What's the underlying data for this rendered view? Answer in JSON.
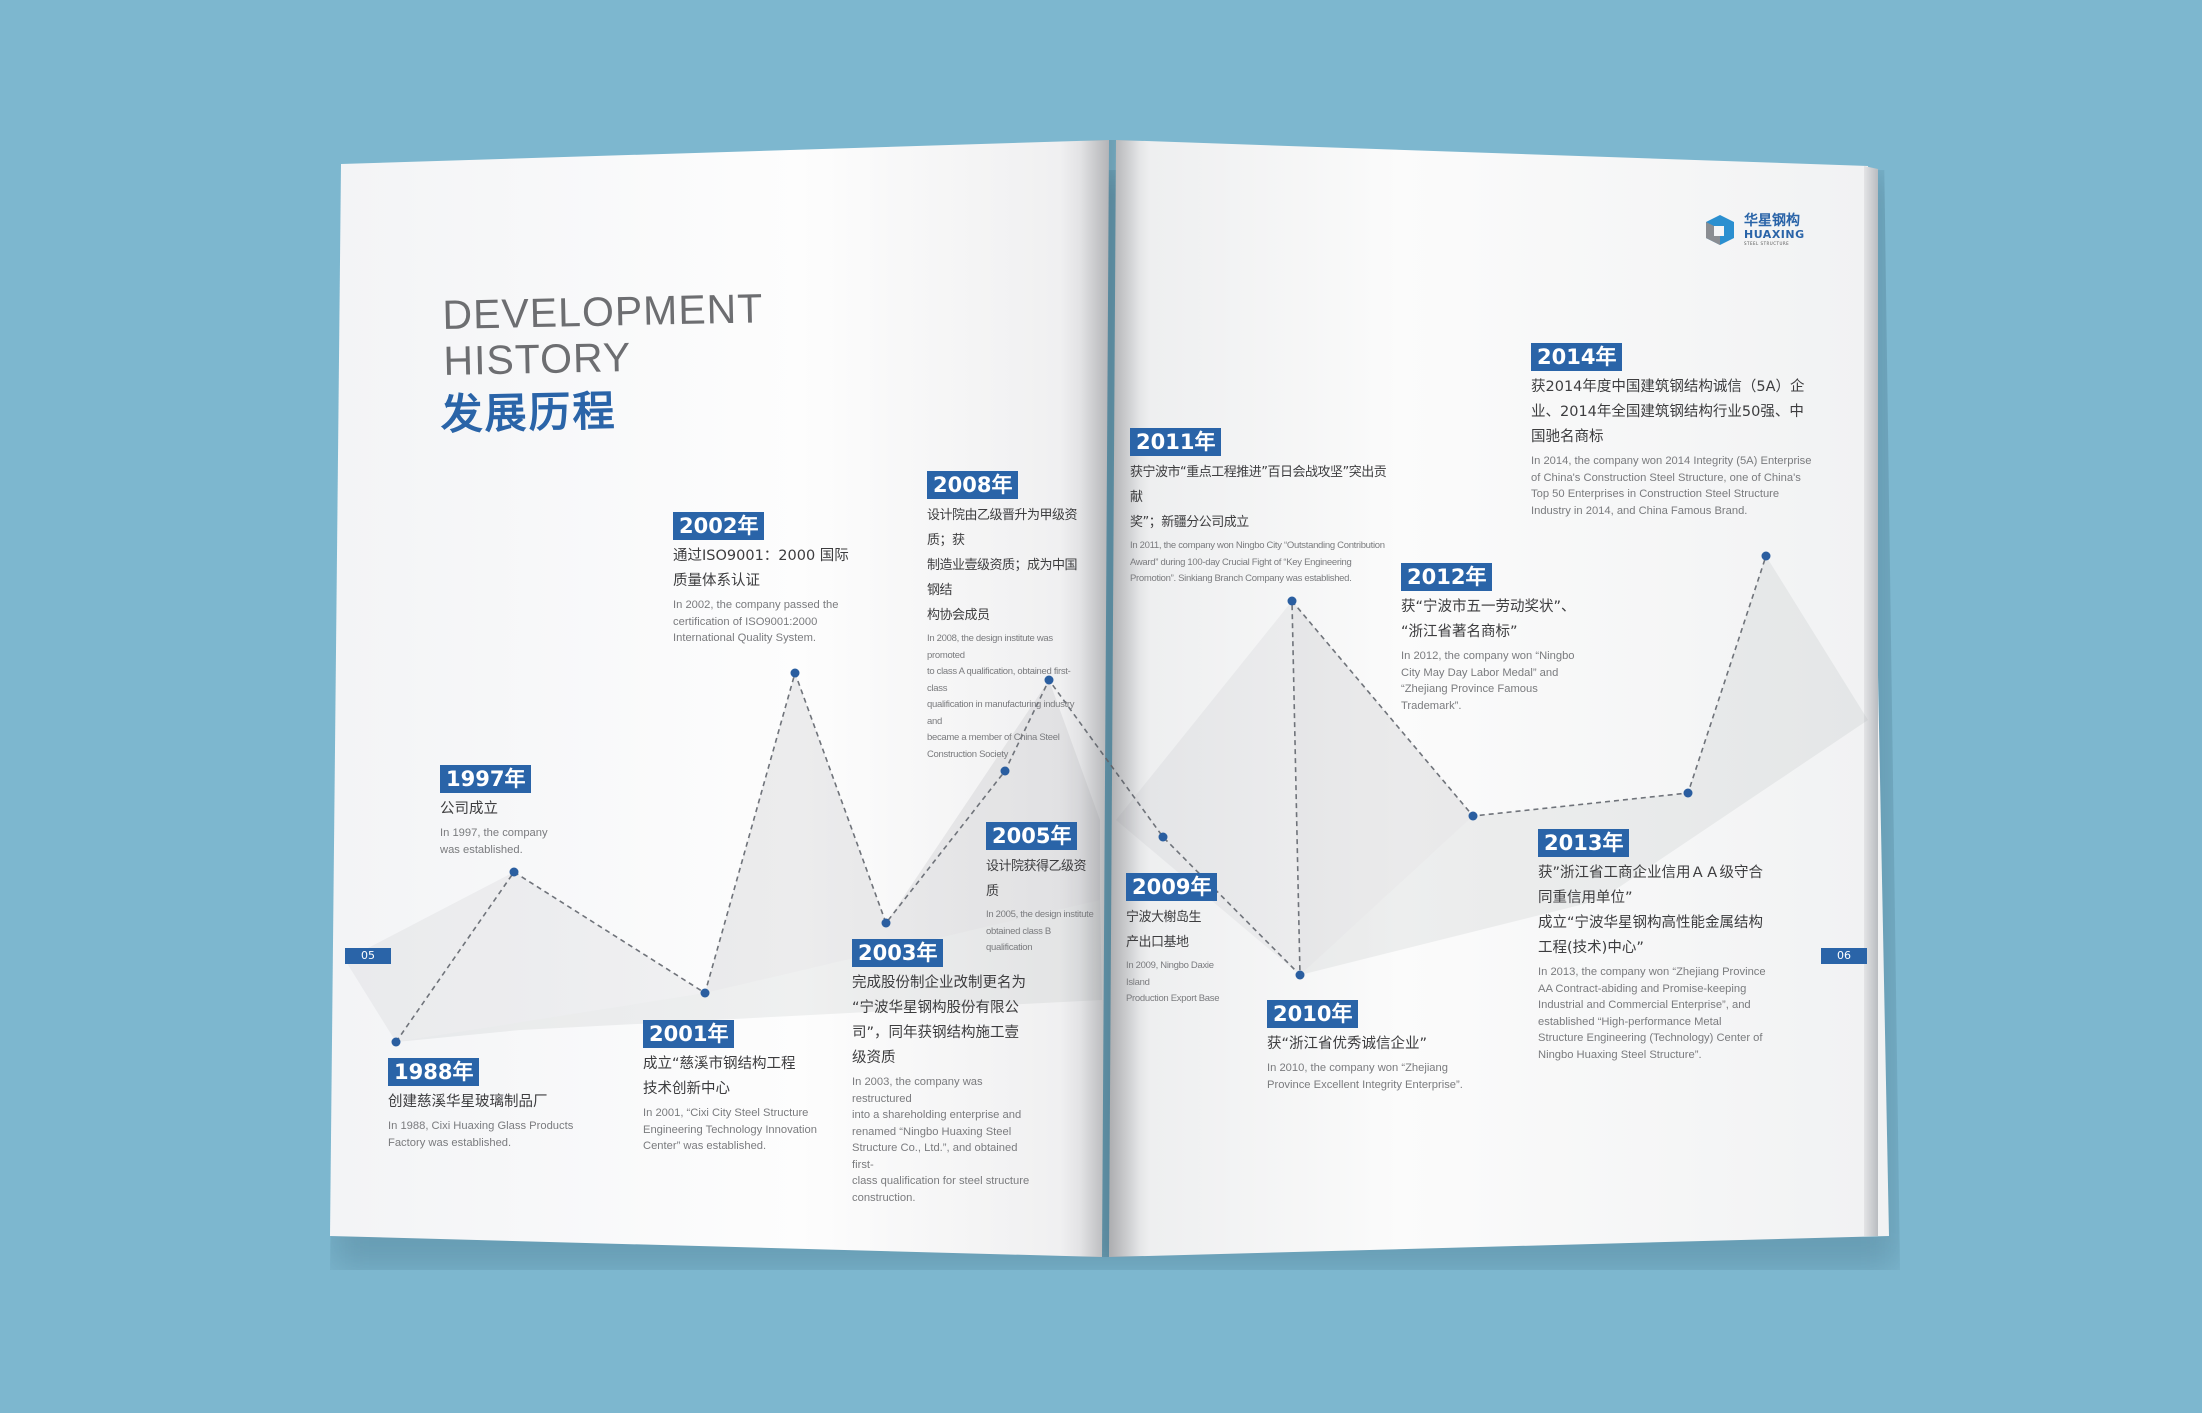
{
  "title": {
    "en": "DEVELOPMENT\nHISTORY",
    "zh": "发展历程"
  },
  "logo": {
    "zh": "华星钢构",
    "en": "HUAXING",
    "sub": "STEEL STRUCTURE"
  },
  "page_numbers": {
    "left": "05",
    "right": "06"
  },
  "colors": {
    "brand_blue": "#2a64a8",
    "background": "#7db7cf",
    "timeline_dot": "#2a5ea0"
  },
  "events": [
    {
      "year": "1988年",
      "zh": "创建慈溪华星玻璃制品厂",
      "en": "In 1988, Cixi Huaxing Glass Products\nFactory was established."
    },
    {
      "year": "1997年",
      "zh": "公司成立",
      "en": "In 1997, the company\nwas established."
    },
    {
      "year": "2001年",
      "zh": "成立“慈溪市钢结构工程\n技术创新中心",
      "en": "In 2001, “Cixi City Steel Structure\nEngineering Technology Innovation\nCenter” was established."
    },
    {
      "year": "2002年",
      "zh": "通过ISO9001：2000 国际\n质量体系认证",
      "en": "In 2002, the company passed the\ncertification of ISO9001:2000\nInternational Quality System."
    },
    {
      "year": "2003年",
      "zh": "完成股份制企业改制更名为\n“宁波华星钢构股份有限公\n司”，同年获钢结构施工壹\n级资质",
      "en": "In 2003, the company was restructured\ninto a shareholding enterprise and\nrenamed “Ningbo Huaxing Steel\nStructure Co., Ltd.”, and obtained first-\nclass qualification for steel structure\nconstruction."
    },
    {
      "year": "2005年",
      "zh": "设计院获得乙级资质",
      "en": "In 2005, the design institute\nobtained class B qualification"
    },
    {
      "year": "2008年",
      "zh": "设计院由乙级晋升为甲级资质；获\n制造业壹级资质；成为中国钢结\n构协会成员",
      "en": "In 2008, the design institute was promoted\nto class A qualification, obtained first-class\nqualification in manufacturing industry and\nbecame a member of China Steel\nConstruction Society"
    },
    {
      "year": "2009年",
      "zh": "宁波大榭岛生\n产出口基地",
      "en": "In 2009, Ningbo Daxie Island\nProduction Export Base"
    },
    {
      "year": "2010年",
      "zh": "获“浙江省优秀诚信企业”",
      "en": "In 2010, the company won “Zhejiang\nProvince Excellent Integrity Enterprise”."
    },
    {
      "year": "2011年",
      "zh": "获宁波市“重点工程推进”百日会战攻坚”突出贡献\n奖”；新疆分公司成立",
      "en": "In 2011, the company won Ningbo City “Outstanding Contribution\nAward” during 100-day Crucial Fight of “Key Engineering\nPromotion”. Sinkiang Branch Company was established."
    },
    {
      "year": "2012年",
      "zh": "获“宁波市五一劳动奖状”、\n“浙江省著名商标”",
      "en": "In 2012, the company won “Ningbo\nCity May Day Labor Medal” and\n“Zhejiang Province Famous\nTrademark”."
    },
    {
      "year": "2013年",
      "zh": "获”浙江省工商企业信用ＡＡ级守合\n同重信用单位”\n成立“宁波华星钢构高性能金属结构\n工程(技术)中心”",
      "en": "In 2013, the company won “Zhejiang Province\nAA Contract-abiding and Promise-keeping\nIndustrial and Commercial Enterprise”, and\nestablished “High-performance Metal\nStructure Engineering (Technology) Center of\nNingbo Huaxing Steel Structure”."
    },
    {
      "year": "2014年",
      "zh": "获2014年度中国建筑钢结构诚信（5A）企\n业、2014年全国建筑钢结构行业50强、中\n国驰名商标",
      "en": "In 2014, the company won 2014 Integrity (5A) Enterprise\nof China's Construction Steel Structure, one of China's\nTop 50 Enterprises in Construction Steel Structure\nIndustry in 2014, and China Famous Brand."
    }
  ]
}
